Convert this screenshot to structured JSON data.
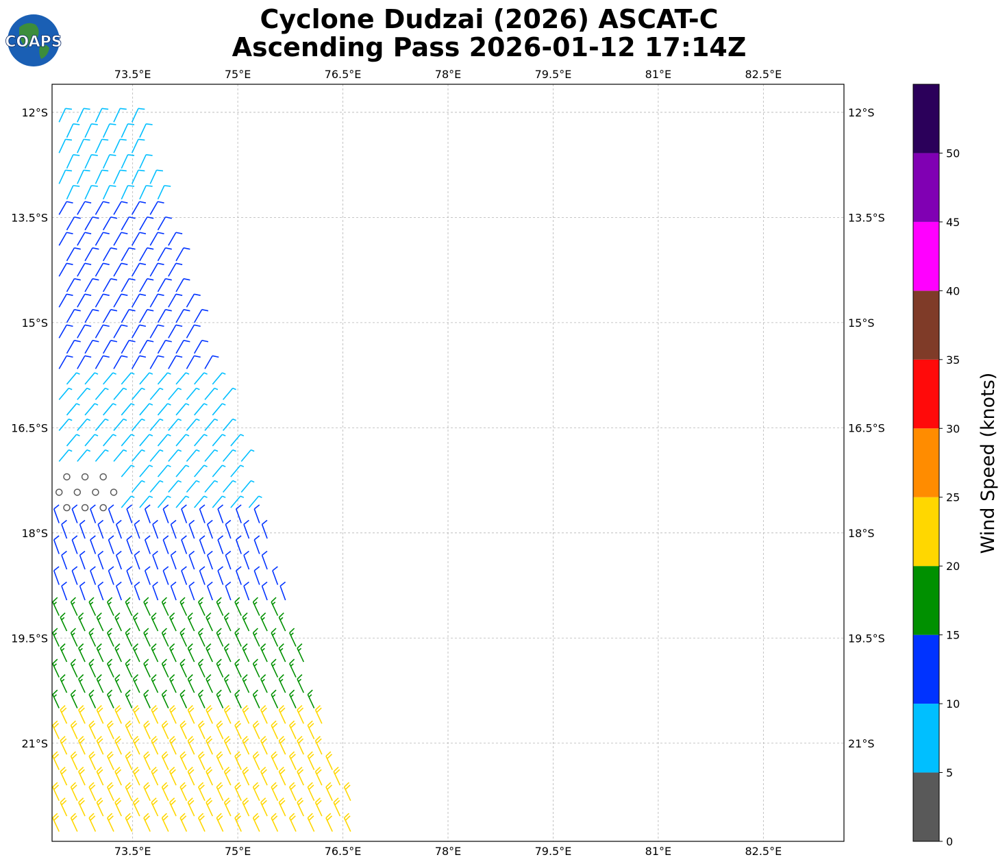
{
  "title": {
    "line1": "Cyclone Dudzai (2026) ASCAT-C",
    "line2": "Ascending Pass 2026-01-12 17:14Z"
  },
  "logo": {
    "text": "COAPS",
    "icon": "globe-icon"
  },
  "map": {
    "lon_ticks": [
      "73.5°E",
      "75°E",
      "76.5°E",
      "78°E",
      "79.5°E",
      "81°E",
      "82.5°E"
    ],
    "lat_ticks": [
      "12°S",
      "13.5°S",
      "15°S",
      "16.5°S",
      "18°S",
      "19.5°S",
      "21°S"
    ],
    "lon_values": [
      73.5,
      75,
      76.5,
      78,
      79.5,
      81,
      82.5
    ],
    "lat_values": [
      -12,
      -13.5,
      -15,
      -16.5,
      -18,
      -19.5,
      -21
    ],
    "lon_range": [
      72.35,
      83.65
    ],
    "lat_range": [
      -22.4,
      -11.6
    ],
    "gridlines": true
  },
  "colorbar": {
    "label": "Wind Speed (knots)",
    "ticks": [
      "0",
      "5",
      "10",
      "15",
      "20",
      "25",
      "30",
      "35",
      "40",
      "45",
      "50"
    ],
    "bins": [
      {
        "min": 0,
        "max": 5,
        "color": "#595959"
      },
      {
        "min": 5,
        "max": 10,
        "color": "#00bfff"
      },
      {
        "min": 10,
        "max": 15,
        "color": "#0033ff"
      },
      {
        "min": 15,
        "max": 20,
        "color": "#009000"
      },
      {
        "min": 20,
        "max": 25,
        "color": "#ffd700"
      },
      {
        "min": 25,
        "max": 30,
        "color": "#ff8c00"
      },
      {
        "min": 30,
        "max": 35,
        "color": "#ff0a0a"
      },
      {
        "min": 35,
        "max": 40,
        "color": "#7f3b28"
      },
      {
        "min": 40,
        "max": 45,
        "color": "#ff00ff"
      },
      {
        "min": 45,
        "max": 50,
        "color": "#8000b3"
      },
      {
        "min": 50,
        "max": 55,
        "color": "#2b005a"
      }
    ]
  },
  "wind_regions": [
    {
      "lat_min": -12.0,
      "lat_max": -13.3,
      "speed_knots": 8,
      "dir_deg": 65,
      "name": "north-light"
    },
    {
      "lat_min": -13.3,
      "lat_max": -15.8,
      "speed_knots": 12,
      "dir_deg": 60,
      "name": "north-moderate"
    },
    {
      "lat_min": -15.8,
      "lat_max": -17.8,
      "speed_knots": 7,
      "dir_deg": 50,
      "name": "center-light"
    },
    {
      "lat_min": -17.8,
      "lat_max": -19.0,
      "speed_knots": 12,
      "dir_deg": 110,
      "name": "south-moderate"
    },
    {
      "lat_min": -19.0,
      "lat_max": -20.5,
      "speed_knots": 17,
      "dir_deg": 115,
      "name": "south-fresh"
    },
    {
      "lat_min": -20.5,
      "lat_max": -22.4,
      "speed_knots": 22,
      "dir_deg": 115,
      "name": "south-strong"
    }
  ],
  "calm_region": {
    "lon_min": 72.35,
    "lon_max": 73.3,
    "lat_min": -17.0,
    "lat_max": -17.8,
    "speed_knots": 2
  }
}
